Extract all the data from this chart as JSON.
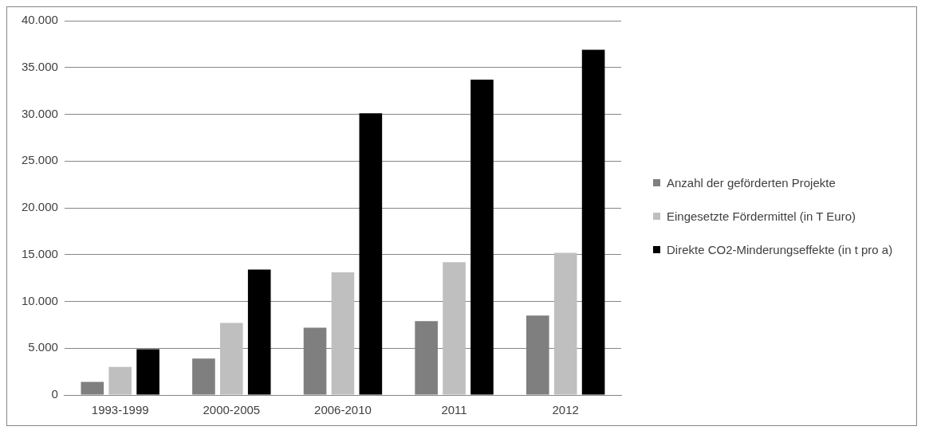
{
  "chart_data": {
    "type": "bar",
    "categories": [
      "1993-1999",
      "2000-2005",
      "2006-2010",
      "2011",
      "2012"
    ],
    "series": [
      {
        "name": "Anzahl der geförderten Projekte",
        "color": "#7f7f7f",
        "values": [
          1400,
          3900,
          7200,
          7900,
          8500
        ]
      },
      {
        "name": "Eingesetzte Fördermittel (in T Euro)",
        "color": "#bfbfbf",
        "values": [
          3000,
          7700,
          13100,
          14200,
          15200
        ]
      },
      {
        "name": "Direkte CO2-Minderungseffekte (in t pro a)",
        "color": "#000000",
        "values": [
          4900,
          13400,
          30100,
          33700,
          36900
        ]
      }
    ],
    "ylim": [
      0,
      40000
    ],
    "yticks": [
      {
        "value": 0,
        "label": "0"
      },
      {
        "value": 5000,
        "label": "5.000"
      },
      {
        "value": 10000,
        "label": "10.000"
      },
      {
        "value": 15000,
        "label": "15.000"
      },
      {
        "value": 20000,
        "label": "20.000"
      },
      {
        "value": 25000,
        "label": "25.000"
      },
      {
        "value": 30000,
        "label": "30.000"
      },
      {
        "value": 35000,
        "label": "35.000"
      },
      {
        "value": 40000,
        "label": "40.000"
      }
    ],
    "grid": "y",
    "legend": "right"
  }
}
